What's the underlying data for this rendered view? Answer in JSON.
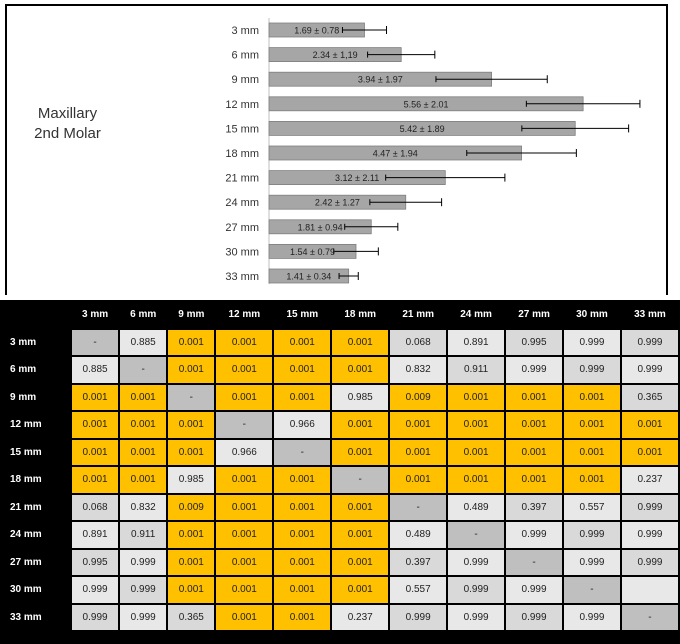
{
  "chart_title_lines": [
    "Maxillary",
    "2nd Molar"
  ],
  "chart_data": [
    {
      "type": "bar",
      "orientation": "horizontal",
      "categories": [
        "3 mm",
        "6 mm",
        "9 mm",
        "12 mm",
        "15 mm",
        "18 mm",
        "21 mm",
        "24 mm",
        "27 mm",
        "30 mm",
        "33 mm"
      ],
      "values": [
        1.69,
        2.34,
        3.94,
        5.56,
        5.42,
        4.47,
        3.12,
        2.42,
        1.81,
        1.54,
        1.41
      ],
      "errors": [
        0.78,
        1.19,
        1.97,
        2.01,
        1.89,
        1.94,
        2.11,
        1.27,
        0.94,
        0.79,
        0.34
      ],
      "data_labels": [
        "1.69 ± 0.78",
        "2.34 ± 1,19",
        "3.94 ± 1.97",
        "5.56 ± 2.01",
        "5.42 ± 1.89",
        "4.47 ± 1.94",
        "3.12 ± 2.11",
        "2.42 ± 1.27",
        "1.81 ± 0.94",
        "1.54 ± 0.79",
        "1.41 ± 0.34"
      ],
      "bar_color": "#a6a6a6",
      "error_bar_shown": true,
      "grid": false
    },
    {
      "type": "table",
      "columns": [
        "3 mm",
        "6 mm",
        "9 mm",
        "12 mm",
        "15 mm",
        "18 mm",
        "21 mm",
        "24 mm",
        "27 mm",
        "30 mm",
        "33 mm"
      ],
      "rows": [
        {
          "label": "3 mm",
          "values": [
            "-",
            "0.885",
            "0.001",
            "0.001",
            "0.001",
            "0.001",
            "0.068",
            "0.891",
            "0.995",
            "0.999",
            "0.999"
          ]
        },
        {
          "label": "6 mm",
          "values": [
            "0.885",
            "-",
            "0.001",
            "0.001",
            "0.001",
            "0.001",
            "0.832",
            "0.911",
            "0.999",
            "0.999",
            "0.999"
          ]
        },
        {
          "label": "9 mm",
          "values": [
            "0.001",
            "0.001",
            "-",
            "0.001",
            "0.001",
            "0.985",
            "0.009",
            "0.001",
            "0.001",
            "0.001",
            "0.365"
          ]
        },
        {
          "label": "12 mm",
          "values": [
            "0.001",
            "0.001",
            "0.001",
            "-",
            "0.966",
            "0.001",
            "0.001",
            "0.001",
            "0.001",
            "0.001",
            "0.001"
          ]
        },
        {
          "label": "15 mm",
          "values": [
            "0.001",
            "0.001",
            "0.001",
            "0.966",
            "-",
            "0.001",
            "0.001",
            "0.001",
            "0.001",
            "0.001",
            "0.001"
          ]
        },
        {
          "label": "18 mm",
          "values": [
            "0.001",
            "0.001",
            "0.985",
            "0.001",
            "0.001",
            "-",
            "0.001",
            "0.001",
            "0.001",
            "0.001",
            "0.237"
          ]
        },
        {
          "label": "21 mm",
          "values": [
            "0.068",
            "0.832",
            "0.009",
            "0.001",
            "0.001",
            "0.001",
            "-",
            "0.489",
            "0.397",
            "0.557",
            "0.999"
          ]
        },
        {
          "label": "24 mm",
          "values": [
            "0.891",
            "0.911",
            "0.001",
            "0.001",
            "0.001",
            "0.001",
            "0.489",
            "-",
            "0.999",
            "0.999",
            "0.999"
          ]
        },
        {
          "label": "27 mm",
          "values": [
            "0.995",
            "0.999",
            "0.001",
            "0.001",
            "0.001",
            "0.001",
            "0.397",
            "0.999",
            "-",
            "0.999",
            "0.999"
          ]
        },
        {
          "label": "30 mm",
          "values": [
            "0.999",
            "0.999",
            "0.001",
            "0.001",
            "0.001",
            "0.001",
            "0.557",
            "0.999",
            "0.999",
            "-",
            ""
          ]
        },
        {
          "label": "33 mm",
          "values": [
            "0.999",
            "0.999",
            "0.365",
            "0.001",
            "0.001",
            "0.237",
            "0.999",
            "0.999",
            "0.999",
            "0.999",
            "-"
          ]
        }
      ],
      "significant_color": "#ffc000",
      "header_color": "#000000"
    }
  ]
}
